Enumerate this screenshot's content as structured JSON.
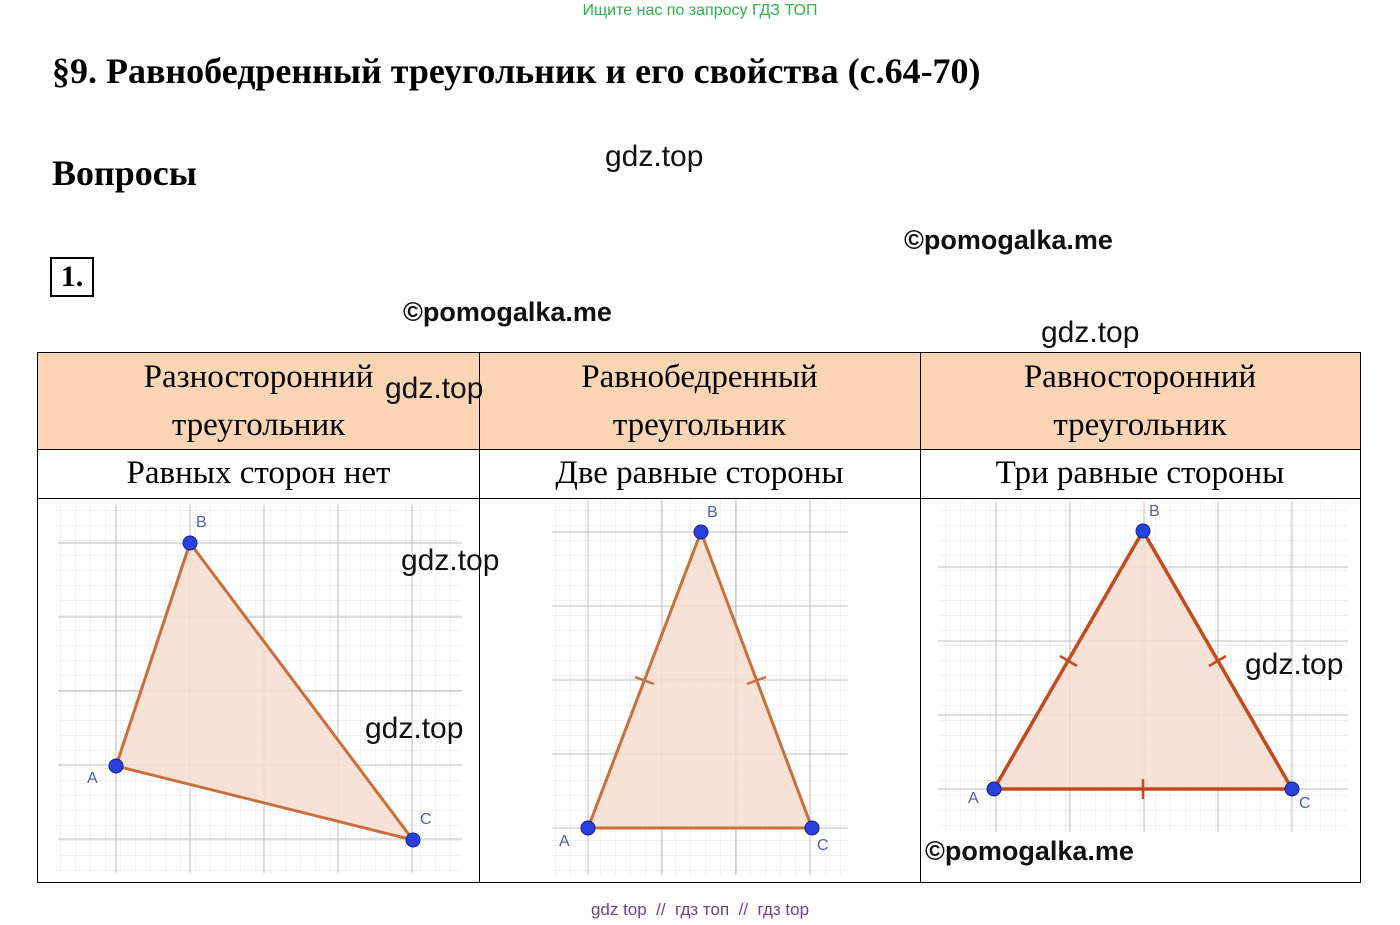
{
  "top_note": "Ищите нас по запросу ГДЗ ТОП",
  "page_title": "§9. Равнобедренный треугольник и его свойства (с.64-70)",
  "section_title": "Вопросы",
  "question_number": "1.",
  "watermarks": {
    "gdz": "gdz.top",
    "pomogalka": "©pomogalka.me"
  },
  "table": {
    "columns": [
      {
        "header_line1": "Разносторонний",
        "header_line2": "треугольник",
        "description": "Равных сторон нет",
        "vertex_labels": [
          "A",
          "B",
          "C"
        ]
      },
      {
        "header_line1": "Равнобедренный",
        "header_line2": "треугольник",
        "description": "Две равные стороны",
        "vertex_labels": [
          "A",
          "B",
          "C"
        ]
      },
      {
        "header_line1": "Равносторонний",
        "header_line2": "треугольник",
        "description": "Три равные стороны",
        "vertex_labels": [
          "A",
          "B",
          "C"
        ]
      }
    ]
  },
  "colors": {
    "header_fill": "#fcd5b4",
    "triangle_stroke": "#c9703a",
    "triangle_fill": "#f7ddd0",
    "point_fill": "#2a3fe0",
    "grid_line": "#d8d8d8"
  },
  "footer": "gdz top  //  гдз топ  //  гдз top"
}
